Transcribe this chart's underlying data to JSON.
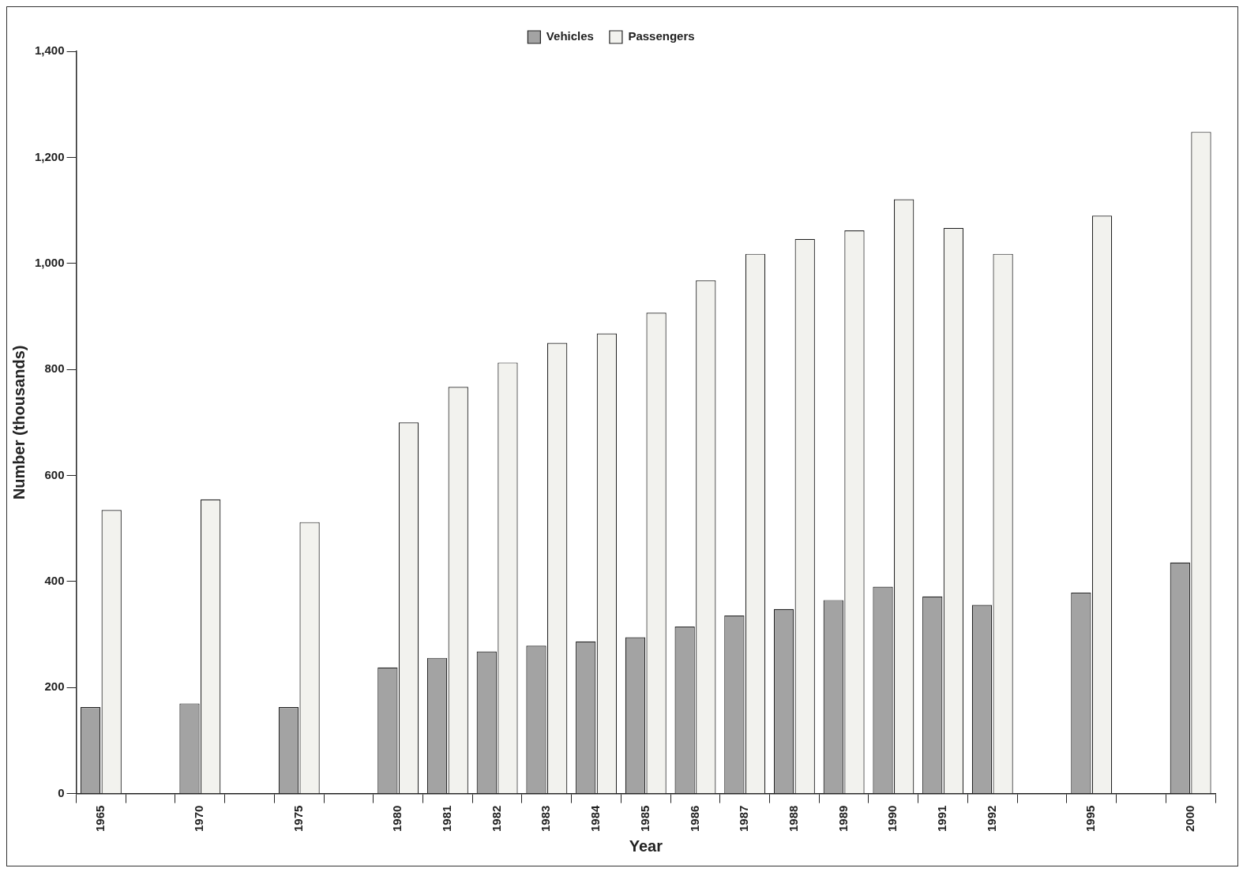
{
  "chart_data": {
    "type": "bar",
    "xlabel": "Year",
    "ylabel": "Number (thousands)",
    "categories": [
      "1965",
      null,
      "1970",
      null,
      "1975",
      null,
      "1980",
      "1981",
      "1982",
      "1983",
      "1984",
      "1985",
      "1986",
      "1987",
      "1988",
      "1989",
      "1990",
      "1991",
      "1992",
      null,
      "1995",
      null,
      "2000"
    ],
    "series": [
      {
        "name": "Vehicles",
        "color": "#a3a3a3",
        "values": [
          163,
          null,
          170,
          null,
          163,
          null,
          238,
          256,
          268,
          279,
          287,
          295,
          315,
          336,
          348,
          365,
          390,
          372,
          356,
          null,
          379,
          null,
          436
        ]
      },
      {
        "name": "Passengers",
        "color": "#f2f2ee",
        "values": [
          535,
          null,
          555,
          null,
          512,
          null,
          700,
          767,
          813,
          850,
          868,
          907,
          968,
          1018,
          1046,
          1062,
          1121,
          1067,
          1018,
          null,
          1090,
          null,
          1248
        ]
      }
    ],
    "ylim": [
      0,
      1400
    ],
    "yticks": [
      0,
      {
        "value": 200,
        "label": "200"
      },
      {
        "value": 400,
        "label": "400"
      },
      {
        "value": 600,
        "label": "600"
      },
      {
        "value": 800,
        "label": "800"
      },
      {
        "value": 1000,
        "label": "1,000"
      },
      {
        "value": 1200,
        "label": "1,200"
      },
      {
        "value": 1400,
        "label": "1,400"
      }
    ],
    "grid": false,
    "legend": "top"
  }
}
